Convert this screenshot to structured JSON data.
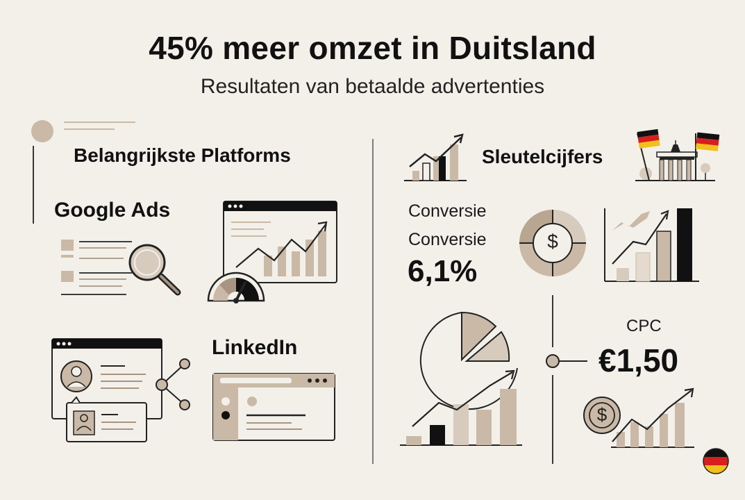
{
  "header": {
    "title": "45% meer omzet in Duitsland",
    "subtitle": "Resultaten van betaalde advertenties"
  },
  "left_section": {
    "title": "Belangrijkste Platforms",
    "platforms": [
      {
        "name": "Google Ads"
      },
      {
        "name": "LinkedIn"
      }
    ]
  },
  "right_section": {
    "title": "Sleutelcijfers",
    "kpis": {
      "conversion_label_1": "Conversie",
      "conversion_label_2": "Conversie",
      "conversion_value": "6,1%",
      "cpc_label": "CPC",
      "cpc_value": "€1,50"
    },
    "currency_symbol": "$"
  },
  "colors": {
    "background": "#f3f0ea",
    "ink": "#111111",
    "beige": "#c9b9a6",
    "beige_dark": "#a89480",
    "flag_black": "#111111",
    "flag_red": "#d81e1e",
    "flag_gold": "#f2c01a"
  }
}
